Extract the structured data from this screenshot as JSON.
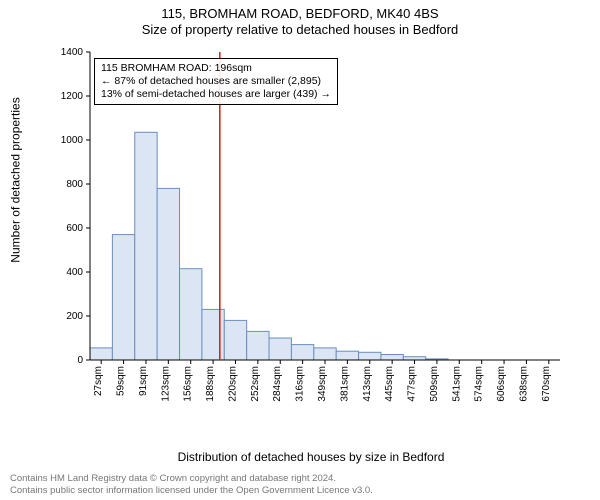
{
  "title_line1": "115, BROMHAM ROAD, BEDFORD, MK40 4BS",
  "title_line2": "Size of property relative to detached houses in Bedford",
  "ylabel": "Number of detached properties",
  "xlabel": "Distribution of detached houses by size in Bedford",
  "footer_line1": "Contains HM Land Registry data © Crown copyright and database right 2024.",
  "footer_line2": "Contains public sector information licensed under the Open Government Licence v3.0.",
  "annotation": {
    "line1": "115 BROMHAM ROAD: 196sqm",
    "line2": "← 87% of detached houses are smaller (2,895)",
    "line3": "13% of semi-detached houses are larger (439) →"
  },
  "chart": {
    "type": "histogram",
    "x_categories": [
      "27sqm",
      "59sqm",
      "91sqm",
      "123sqm",
      "156sqm",
      "188sqm",
      "220sqm",
      "252sqm",
      "284sqm",
      "316sqm",
      "349sqm",
      "381sqm",
      "413sqm",
      "445sqm",
      "477sqm",
      "509sqm",
      "541sqm",
      "574sqm",
      "606sqm",
      "638sqm",
      "670sqm"
    ],
    "values": [
      55,
      570,
      1035,
      780,
      415,
      230,
      180,
      130,
      100,
      70,
      55,
      40,
      35,
      25,
      15,
      5,
      0,
      0,
      0,
      0,
      0
    ],
    "ylim": [
      0,
      1400
    ],
    "ytick_step": 200,
    "bar_fill": "#dbe5f4",
    "bar_stroke": "#6a8fbf",
    "vline_color": "#d11a1a",
    "vline_x_index": 5.3,
    "axis_color": "#000000",
    "tick_font_size": 10,
    "label_font_size": 12,
    "bar_width_ratio": 1.0,
    "background_color": "#ffffff",
    "annotation_box_border": "#000000",
    "annotation_box_bg": "#ffffff"
  }
}
